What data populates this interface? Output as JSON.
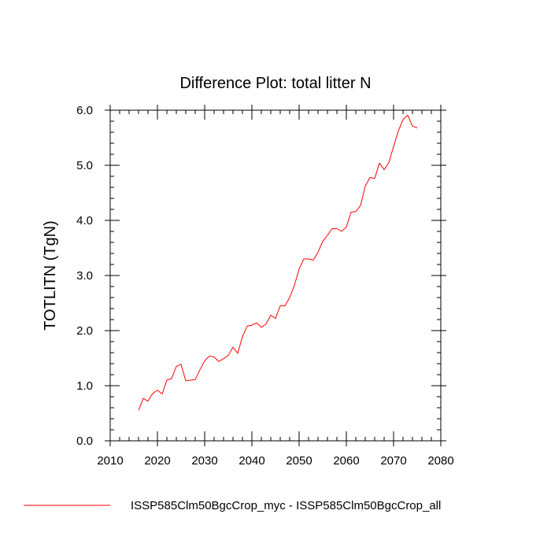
{
  "chart_data": {
    "type": "line",
    "title": "Difference Plot: total litter N",
    "ylabel": "TOTLITN  (TgN)",
    "xlabel": "",
    "xlim": [
      2010,
      2080
    ],
    "ylim": [
      0,
      6
    ],
    "x_ticks": [
      2010,
      2020,
      2030,
      2040,
      2050,
      2060,
      2070,
      2080
    ],
    "x_tick_labels": [
      "2010",
      "2020",
      "2030",
      "2040",
      "2050",
      "2060",
      "2070",
      "2080"
    ],
    "y_ticks": [
      0,
      1,
      2,
      3,
      4,
      5,
      6
    ],
    "y_tick_labels": [
      "0.0",
      "1.0",
      "2.0",
      "3.0",
      "4.0",
      "5.0",
      "6.0"
    ],
    "grid": false,
    "legend_position": "bottom",
    "series": [
      {
        "name": "ISSP585Clm50BgcCrop_myc - ISSP585Clm50BgcCrop_all",
        "color": "#ff0000",
        "x": [
          2016,
          2017,
          2018,
          2019,
          2020,
          2021,
          2022,
          2023,
          2024,
          2025,
          2026,
          2027,
          2028,
          2029,
          2030,
          2031,
          2032,
          2033,
          2034,
          2035,
          2036,
          2037,
          2038,
          2039,
          2040,
          2041,
          2042,
          2043,
          2044,
          2045,
          2046,
          2047,
          2048,
          2049,
          2050,
          2051,
          2052,
          2053,
          2054,
          2055,
          2056,
          2057,
          2058,
          2059,
          2060,
          2061,
          2062,
          2063,
          2064,
          2065,
          2066,
          2067,
          2068,
          2069,
          2070,
          2071,
          2072,
          2073,
          2074,
          2075
        ],
        "y": [
          0.55,
          0.77,
          0.72,
          0.86,
          0.92,
          0.85,
          1.1,
          1.13,
          1.35,
          1.39,
          1.09,
          1.1,
          1.11,
          1.29,
          1.45,
          1.54,
          1.52,
          1.44,
          1.49,
          1.55,
          1.7,
          1.59,
          1.89,
          2.08,
          2.1,
          2.14,
          2.06,
          2.12,
          2.28,
          2.22,
          2.45,
          2.45,
          2.6,
          2.82,
          3.12,
          3.3,
          3.3,
          3.28,
          3.42,
          3.62,
          3.73,
          3.85,
          3.85,
          3.8,
          3.88,
          4.15,
          4.16,
          4.27,
          4.62,
          4.78,
          4.76,
          5.04,
          4.92,
          5.05,
          5.34,
          5.62,
          5.83,
          5.91,
          5.71,
          5.68
        ]
      }
    ]
  }
}
